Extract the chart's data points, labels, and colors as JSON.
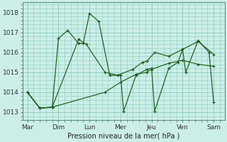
{
  "xlabel": "Pression niveau de la mer( hPa )",
  "background_color": "#cceee8",
  "line_color": "#1a5c1a",
  "grid_color": "#88ccbb",
  "x_labels": [
    "Mar",
    "Dim",
    "Lun",
    "Mer",
    "Jeu",
    "Ven",
    "Sam"
  ],
  "x_ticks": [
    0,
    1,
    2,
    3,
    4,
    5,
    6
  ],
  "ylim": [
    1012.6,
    1018.5
  ],
  "yticks": [
    1013,
    1014,
    1015,
    1016,
    1017,
    1018
  ],
  "series_a_x": [
    0,
    0.4,
    0.8,
    1.0,
    1.3,
    1.65,
    1.8,
    2.0,
    2.3,
    2.65,
    3.0,
    3.1,
    3.5,
    3.85,
    4.0,
    4.1,
    4.55,
    4.85,
    5.0,
    5.1,
    5.5,
    5.85,
    6.0
  ],
  "series_a_y": [
    1014.0,
    1013.2,
    1013.25,
    1016.7,
    1017.1,
    1016.45,
    1016.45,
    1017.95,
    1017.55,
    1014.85,
    1014.85,
    1013.05,
    1014.85,
    1015.15,
    1015.2,
    1013.05,
    1015.2,
    1015.5,
    1016.15,
    1015.0,
    1016.6,
    1016.0,
    1013.5
  ],
  "series_b_x": [
    0,
    0.4,
    0.8,
    1.65,
    1.9,
    2.5,
    2.9,
    3.4,
    3.7,
    3.85,
    4.1,
    4.55,
    5.0,
    5.5,
    6.0
  ],
  "series_b_y": [
    1014.0,
    1013.2,
    1013.25,
    1016.65,
    1016.4,
    1015.0,
    1014.85,
    1015.15,
    1015.5,
    1015.55,
    1016.0,
    1015.8,
    1016.15,
    1016.55,
    1015.9
  ],
  "series_c_x": [
    0,
    0.4,
    0.8,
    2.5,
    3.0,
    3.5,
    3.85,
    4.0,
    4.55,
    5.0,
    5.5,
    6.0
  ],
  "series_c_y": [
    1014.0,
    1013.2,
    1013.25,
    1014.0,
    1014.5,
    1014.9,
    1015.0,
    1015.15,
    1015.45,
    1015.6,
    1015.4,
    1015.3
  ]
}
